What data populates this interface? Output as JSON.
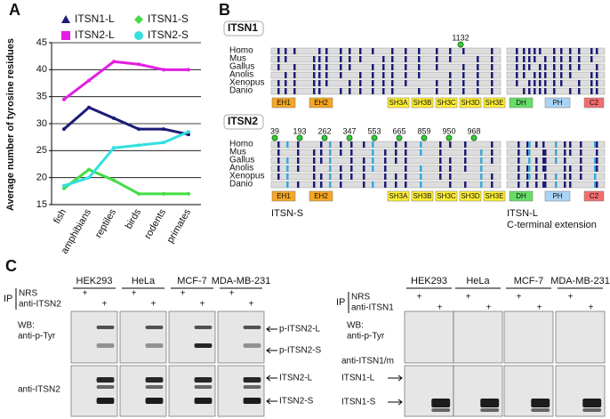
{
  "chart_data": {
    "type": "line",
    "panel_label": "A",
    "ylabel": "Average number of tyrosine residues",
    "categories": [
      "fish",
      "amphibians",
      "reptiles",
      "birds",
      "rodents",
      "primates"
    ],
    "series": [
      {
        "name": "ITSN1-L",
        "color": "#1c1c78",
        "marker": "triangle",
        "values": [
          29,
          33,
          31,
          29,
          29,
          28
        ]
      },
      {
        "name": "ITSN2-L",
        "color": "#e21ee2",
        "marker": "square",
        "values": [
          34.5,
          38,
          41.5,
          41,
          40,
          40
        ]
      },
      {
        "name": "ITSN1-S",
        "color": "#44dd44",
        "marker": "diamond",
        "values": [
          18,
          21.5,
          19.5,
          17,
          17,
          17
        ]
      },
      {
        "name": "ITSN2-S",
        "color": "#33e0e0",
        "marker": "circle",
        "values": [
          18.5,
          20,
          25.5,
          26,
          26.5,
          28.5
        ]
      }
    ],
    "ylim": [
      15,
      45
    ],
    "yticks": [
      15,
      20,
      25,
      30,
      35,
      40,
      45
    ],
    "grid": true
  },
  "panel_b": {
    "label": "B",
    "itsn1": {
      "title": "ITSN1",
      "species": [
        "Homo",
        "Mus",
        "Gallus",
        "Anolis",
        "Xenopus",
        "Danio"
      ],
      "sites": [
        1132
      ],
      "domains": [
        "EH1",
        "EH2",
        "SH3A",
        "SH3B",
        "SH3C",
        "SH3D",
        "SH3E"
      ],
      "l_domains": [
        "DH",
        "PH",
        "C2"
      ]
    },
    "itsn2": {
      "title": "ITSN2",
      "species": [
        "Homo",
        "Mus",
        "Gallus",
        "Anolis",
        "Xenopus",
        "Danio"
      ],
      "sites": [
        39,
        193,
        262,
        347,
        553,
        665,
        859,
        950,
        968
      ],
      "domains": [
        "EH1",
        "EH2",
        "SH3A",
        "SH3B",
        "SH3C",
        "SH3D",
        "SH3E"
      ],
      "l_domains": [
        "DH",
        "PH",
        "C2"
      ]
    },
    "s_label": "ITSN-S",
    "l_label": [
      "ITSN-L",
      "C-terminal extension"
    ]
  },
  "panel_c": {
    "label": "C",
    "cell_lines": [
      "HEK293",
      "HeLa",
      "MCF-7",
      "MDA-MB-231"
    ],
    "ip": "IP",
    "plus": "+",
    "left": {
      "rows": [
        "NRS",
        "anti-ITSN2"
      ],
      "wb": [
        "WB:",
        "anti-p-Tyr"
      ],
      "phospho": [
        "p-ITSN2-L",
        "p-ITSN2-S"
      ],
      "ab": "anti-ITSN2",
      "bands": [
        "ITSN2-L",
        "ITSN2-S"
      ]
    },
    "right": {
      "rows": [
        "NRS",
        "anti-ITSN1"
      ],
      "wb": [
        "WB:",
        "anti-p-Tyr"
      ],
      "ab": "anti-ITSN1/m",
      "bands": [
        "ITSN1-L",
        "ITSN1-S"
      ]
    }
  }
}
